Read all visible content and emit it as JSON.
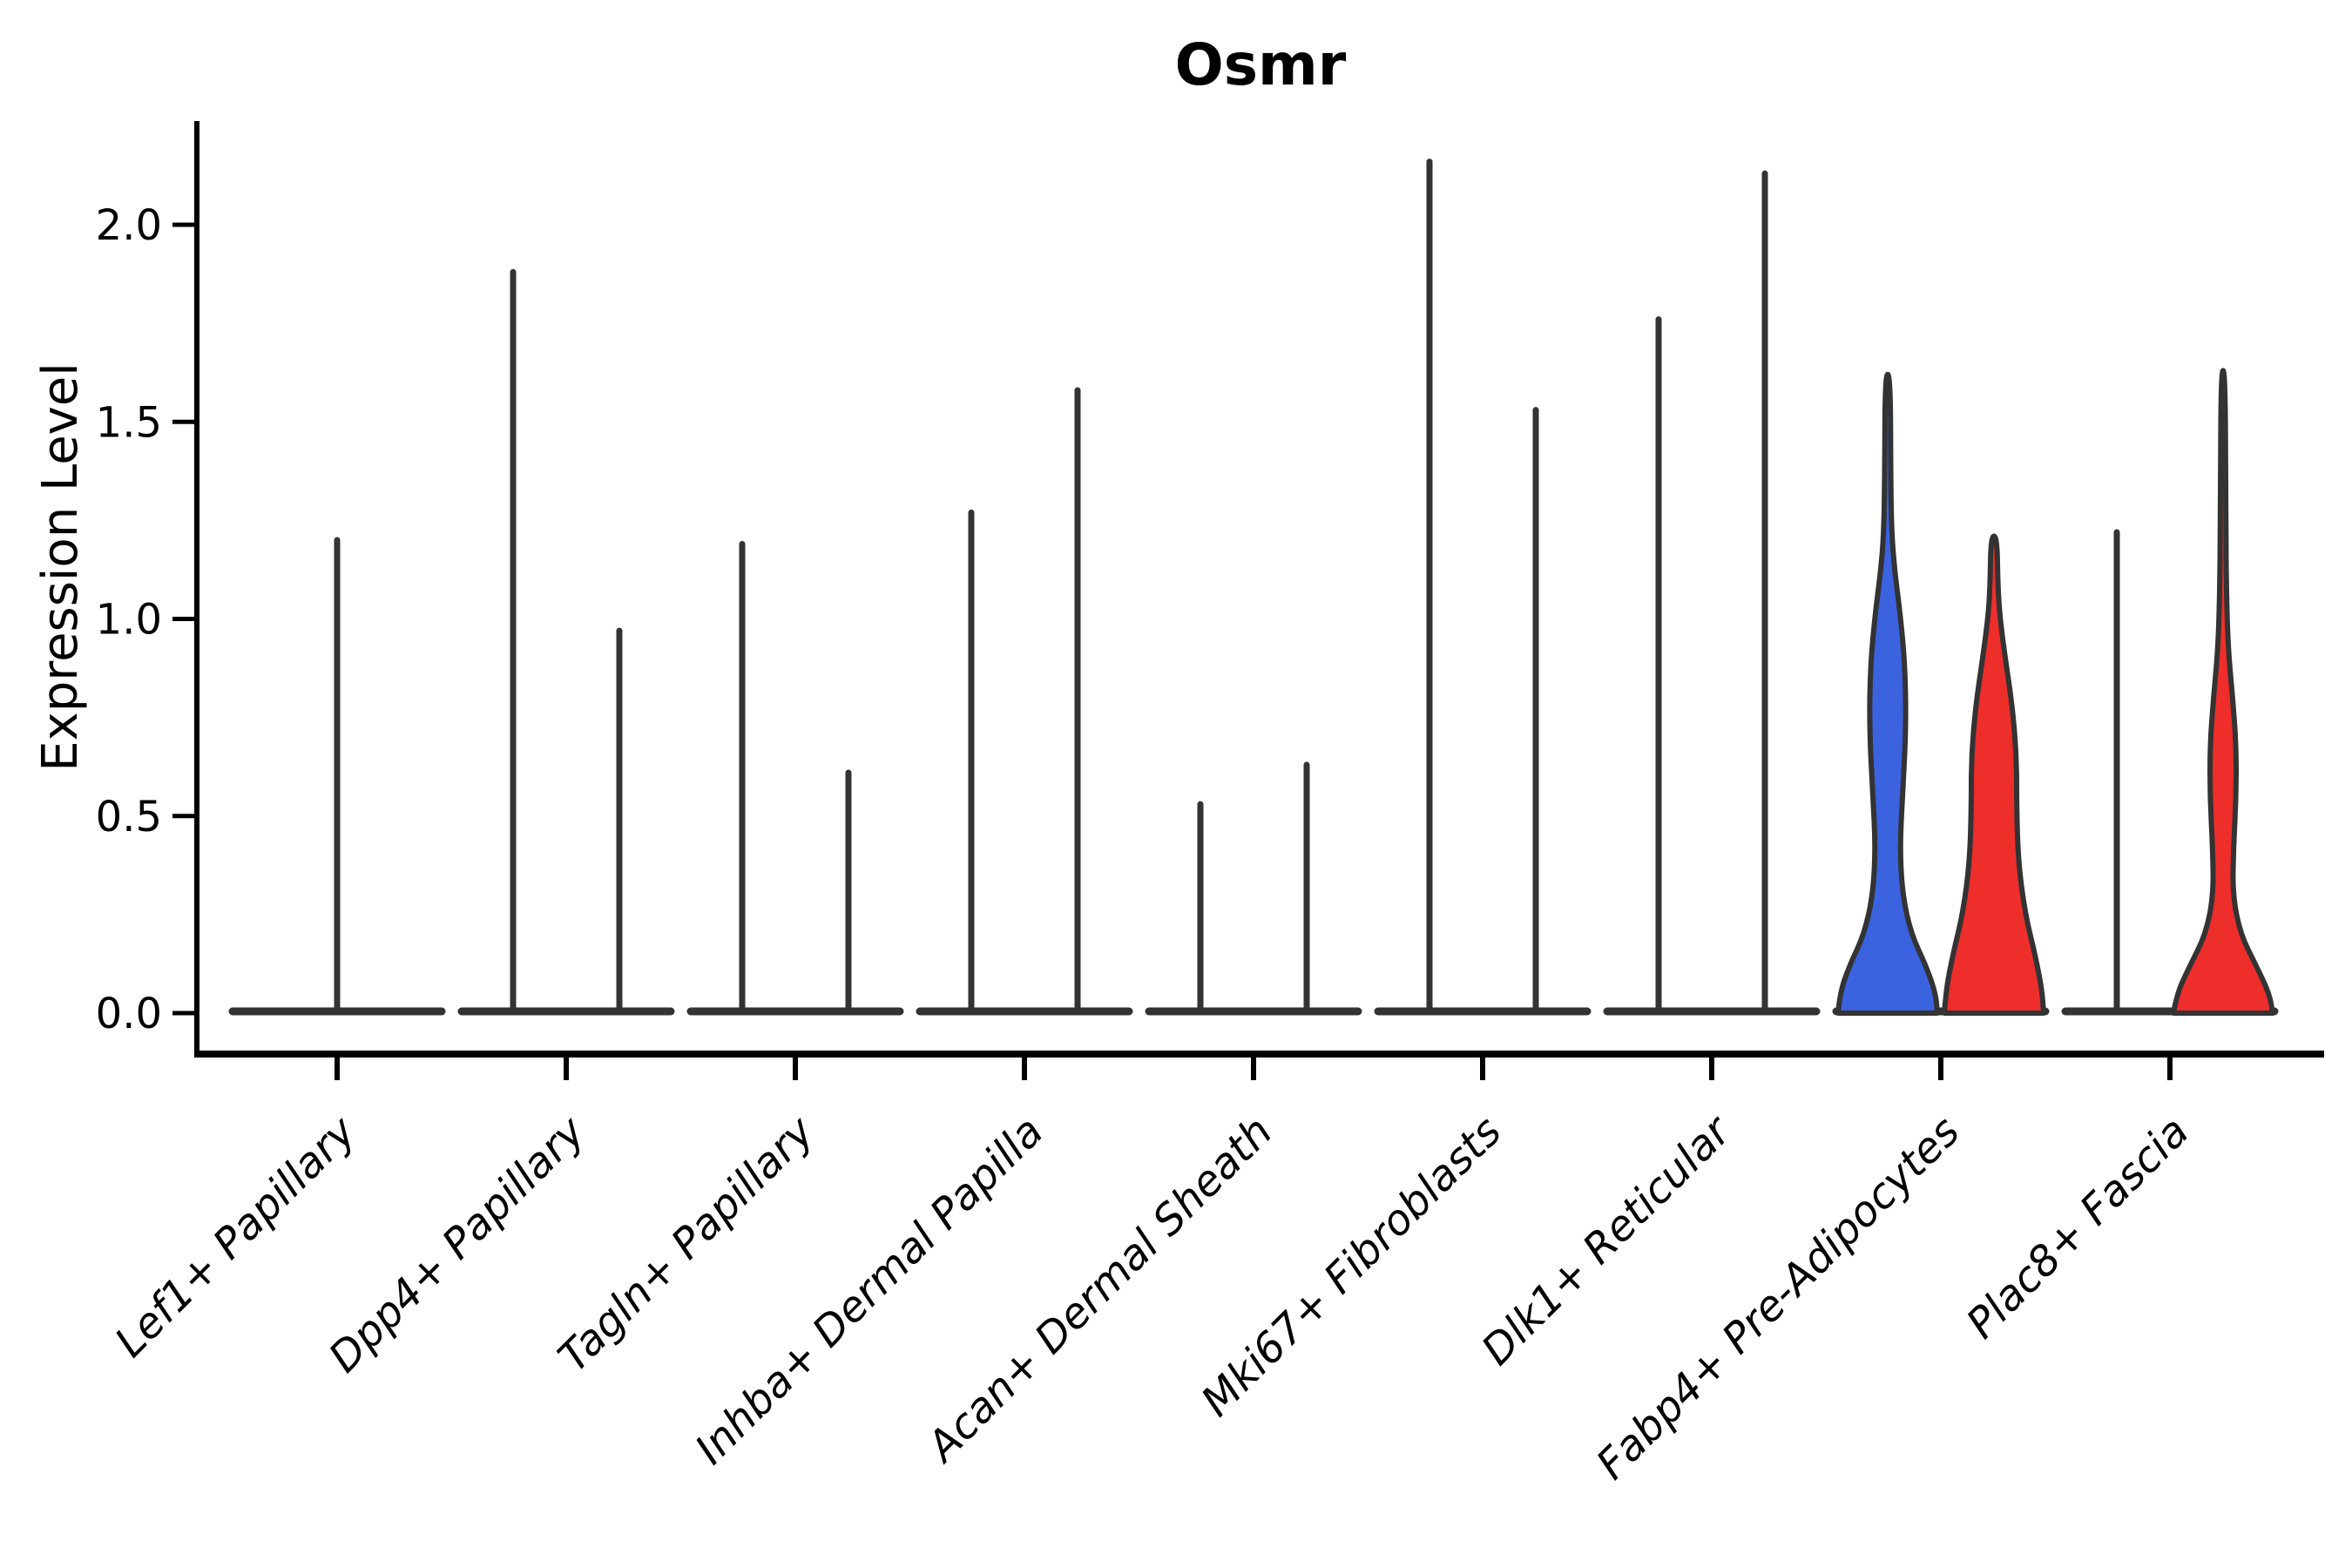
{
  "chart_data": {
    "type": "violin",
    "title": "Osmr",
    "ylabel": "Expression Level",
    "xlabel": "",
    "grid": false,
    "legend": "none",
    "ylim": [
      -0.1,
      2.26
    ],
    "yticks": [
      {
        "value": 0.0,
        "label": "0.0"
      },
      {
        "value": 0.5,
        "label": "0.5"
      },
      {
        "value": 1.0,
        "label": "1.0"
      },
      {
        "value": 1.5,
        "label": "1.5"
      },
      {
        "value": 2.0,
        "label": "2.0"
      }
    ],
    "categories": [
      "Lef1+ Papillary",
      "Dpp4+ Papillary",
      "Tagln+ Papillary",
      "Inhba+ Dermal Papilla",
      "Acan+ Dermal Sheath",
      "Mki67+ Fibroblasts",
      "Dlk1+ Reticular",
      "Fabp4+ Pre-Adipocytes",
      "Plac8+ Fascia"
    ],
    "violins": [
      {
        "category_index": 0,
        "category": "Lef1+ Papillary",
        "position": "center",
        "style": "spike",
        "color": "#333333",
        "max_expression": 1.2
      },
      {
        "category_index": 1,
        "category": "Dpp4+ Papillary",
        "position": "left",
        "style": "spike",
        "color": "#333333",
        "max_expression": 1.88
      },
      {
        "category_index": 1,
        "category": "Dpp4+ Papillary",
        "position": "right",
        "style": "spike",
        "color": "#333333",
        "max_expression": 0.97
      },
      {
        "category_index": 2,
        "category": "Tagln+ Papillary",
        "position": "left",
        "style": "spike",
        "color": "#333333",
        "max_expression": 1.19
      },
      {
        "category_index": 2,
        "category": "Tagln+ Papillary",
        "position": "right",
        "style": "spike",
        "color": "#333333",
        "max_expression": 0.61
      },
      {
        "category_index": 3,
        "category": "Inhba+ Dermal Papilla",
        "position": "left",
        "style": "spike",
        "color": "#333333",
        "max_expression": 1.27
      },
      {
        "category_index": 3,
        "category": "Inhba+ Dermal Papilla",
        "position": "right",
        "style": "spike",
        "color": "#333333",
        "max_expression": 1.58
      },
      {
        "category_index": 4,
        "category": "Acan+ Dermal Sheath",
        "position": "left",
        "style": "spike",
        "color": "#333333",
        "max_expression": 0.53
      },
      {
        "category_index": 4,
        "category": "Acan+ Dermal Sheath",
        "position": "right",
        "style": "spike",
        "color": "#333333",
        "max_expression": 0.63
      },
      {
        "category_index": 5,
        "category": "Mki67+ Fibroblasts",
        "position": "left",
        "style": "spike",
        "color": "#333333",
        "max_expression": 2.16
      },
      {
        "category_index": 5,
        "category": "Mki67+ Fibroblasts",
        "position": "right",
        "style": "spike",
        "color": "#333333",
        "max_expression": 1.53
      },
      {
        "category_index": 6,
        "category": "Dlk1+ Reticular",
        "position": "left",
        "style": "spike",
        "color": "#333333",
        "max_expression": 1.76
      },
      {
        "category_index": 6,
        "category": "Dlk1+ Reticular",
        "position": "right",
        "style": "spike",
        "color": "#333333",
        "max_expression": 2.13
      },
      {
        "category_index": 7,
        "category": "Fabp4+ Pre-Adipocytes",
        "position": "left",
        "style": "filled",
        "color": "#3B63E0",
        "max_expression": 1.62,
        "profile": [
          [
            0,
            57
          ],
          [
            0.05,
            55
          ],
          [
            0.12,
            44
          ],
          [
            0.2,
            27
          ],
          [
            0.3,
            17
          ],
          [
            0.42,
            14
          ],
          [
            0.55,
            17
          ],
          [
            0.72,
            21
          ],
          [
            0.88,
            20
          ],
          [
            1.02,
            14
          ],
          [
            1.12,
            8
          ],
          [
            1.22,
            4.5
          ],
          [
            1.35,
            3.5
          ],
          [
            1.62,
            3
          ]
        ]
      },
      {
        "category_index": 7,
        "category": "Fabp4+ Pre-Adipocytes",
        "position": "right",
        "style": "filled",
        "color": "#EE2E2B",
        "max_expression": 1.21,
        "profile": [
          [
            0,
            57
          ],
          [
            0.06,
            55
          ],
          [
            0.15,
            47
          ],
          [
            0.25,
            36
          ],
          [
            0.38,
            28
          ],
          [
            0.52,
            26
          ],
          [
            0.65,
            26
          ],
          [
            0.78,
            21
          ],
          [
            0.9,
            13
          ],
          [
            1.0,
            7
          ],
          [
            1.08,
            4.5
          ],
          [
            1.21,
            3.5
          ]
        ]
      },
      {
        "category_index": 8,
        "category": "Plac8+ Fascia",
        "position": "left",
        "style": "spike",
        "color": "#333333",
        "max_expression": 1.22
      },
      {
        "category_index": 8,
        "category": "Plac8+ Fascia",
        "position": "right",
        "style": "filled",
        "color": "#EE2E2B",
        "max_expression": 1.63,
        "profile": [
          [
            0,
            57
          ],
          [
            0.05,
            53
          ],
          [
            0.12,
            38
          ],
          [
            0.2,
            20
          ],
          [
            0.3,
            11
          ],
          [
            0.42,
            12
          ],
          [
            0.55,
            15
          ],
          [
            0.68,
            15
          ],
          [
            0.8,
            11
          ],
          [
            0.92,
            6
          ],
          [
            1.05,
            4
          ],
          [
            1.25,
            3
          ],
          [
            1.63,
            2.5
          ]
        ]
      }
    ],
    "colors": {
      "group1_fill": "#3B63E0",
      "group2_fill": "#EE2E2B",
      "outline": "#333333",
      "axis": "#000000",
      "background": "#ffffff"
    }
  }
}
